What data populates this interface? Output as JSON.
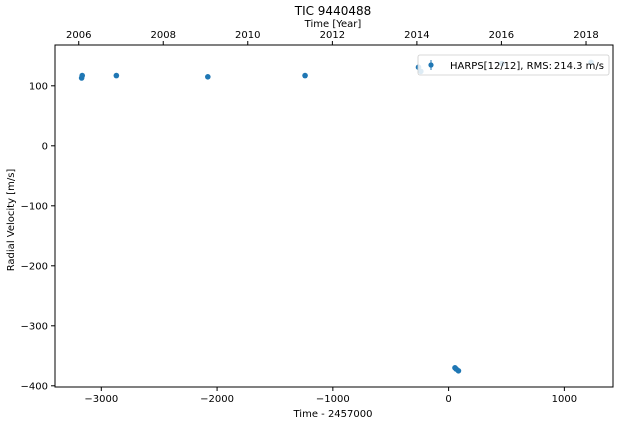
{
  "chart_data": {
    "type": "scatter",
    "title": "TIC 9440488",
    "xlabel": "Time - 2457000",
    "ylabel": "Radial Velocity [m/s]",
    "top_xlabel": "Time [Year]",
    "xlim": [
      -3400,
      1420
    ],
    "ylim": [
      -402,
      168
    ],
    "xticks": [
      -3000,
      -2000,
      -1000,
      0,
      1000
    ],
    "xtick_labels": [
      "−3000",
      "−2000",
      "−1000",
      "0",
      "1000"
    ],
    "yticks": [
      100,
      0,
      -100,
      -200,
      -300,
      -400
    ],
    "ytick_labels": [
      "100",
      "0",
      "−100",
      "−200",
      "−300",
      "−400"
    ],
    "top_ticks": [
      {
        "label": "2006",
        "value": -3195
      },
      {
        "label": "2008",
        "value": -2465
      },
      {
        "label": "2010",
        "value": -1735
      },
      {
        "label": "2012",
        "value": -1004
      },
      {
        "label": "2014",
        "value": -274
      },
      {
        "label": "2016",
        "value": 456
      },
      {
        "label": "2018",
        "value": 1187
      }
    ],
    "legend": {
      "placement": "top-right",
      "label": "HARPS[12/12], RMS:",
      "rms": "214.3 m/s"
    },
    "series": [
      {
        "name": "HARPS[12/12]",
        "color": "#1f77b4",
        "x": [
          -3170,
          -3165,
          -2870,
          -2080,
          -1240,
          -260,
          -240,
          55,
          65,
          85,
          460,
          1230
        ],
        "y": [
          113,
          117,
          117,
          115,
          117,
          131,
          124,
          -370,
          -372,
          -375,
          137,
          139
        ]
      }
    ]
  }
}
